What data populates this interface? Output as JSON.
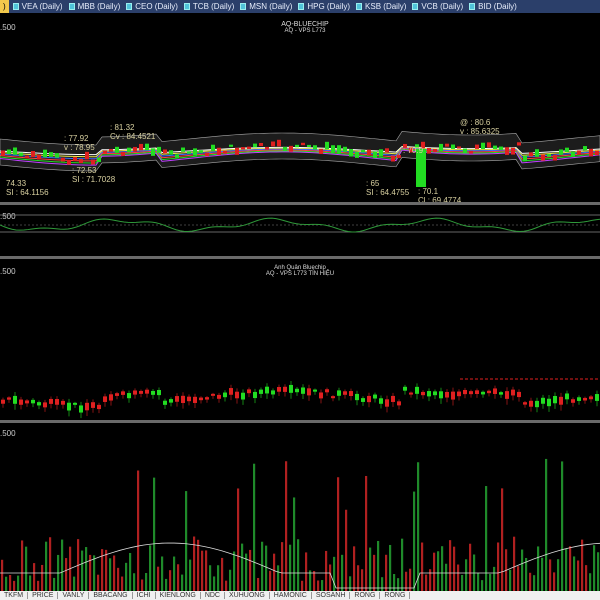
{
  "tabs": {
    "current": ")",
    "items": [
      "VEA (Daily)",
      "MBB (Daily)",
      "CEO (Daily)",
      "TCB (Daily)",
      "MSN (Daily)",
      "HPG (Daily)",
      "KSB (Daily)",
      "VCB (Daily)",
      "BID (Daily)"
    ]
  },
  "pane1": {
    "level": ".500",
    "title": "AQ-BLUECHIP",
    "subtitle": "AQ - VPS  L773",
    "annotations": [
      {
        "l1": "74.33",
        "l2": "SI : 64.1156"
      },
      {
        "l1": ": 77.92",
        "l2": "v : 78.95"
      },
      {
        "l1": ": 72.53",
        "l2": "SI : 71.7028"
      },
      {
        "l1": ": 81.32",
        "l2": "Cv : 84.4521"
      },
      {
        "l1": ": 65",
        "l2": "SI : 64.4755"
      },
      {
        "l1": ": 70.9",
        "l2": ""
      },
      {
        "l1": ": 70.1",
        "l2": "Cl : 69.4774"
      },
      {
        "l1": "@ : 80.6",
        "l2": "v : 85.6325"
      }
    ]
  },
  "pane2": {
    "level": ".500"
  },
  "pane3": {
    "level": ".500",
    "title": "Anh Quân Bluechip",
    "subtitle": "AQ - VPS  L773 TÍN HIỆU"
  },
  "pane4": {
    "level": ".500"
  },
  "bottom_tabs": [
    "TKFM",
    "PRICE",
    "VANLY",
    "BBACANG",
    "ICHI",
    "KIENLONG",
    "NDC",
    "XUHUONG",
    "HAMONIC",
    "SOSANH",
    "RONG",
    "RONG"
  ],
  "colors": {
    "up": "#22dd22",
    "down": "#e02020",
    "tabbar": "#2b3f6a"
  }
}
